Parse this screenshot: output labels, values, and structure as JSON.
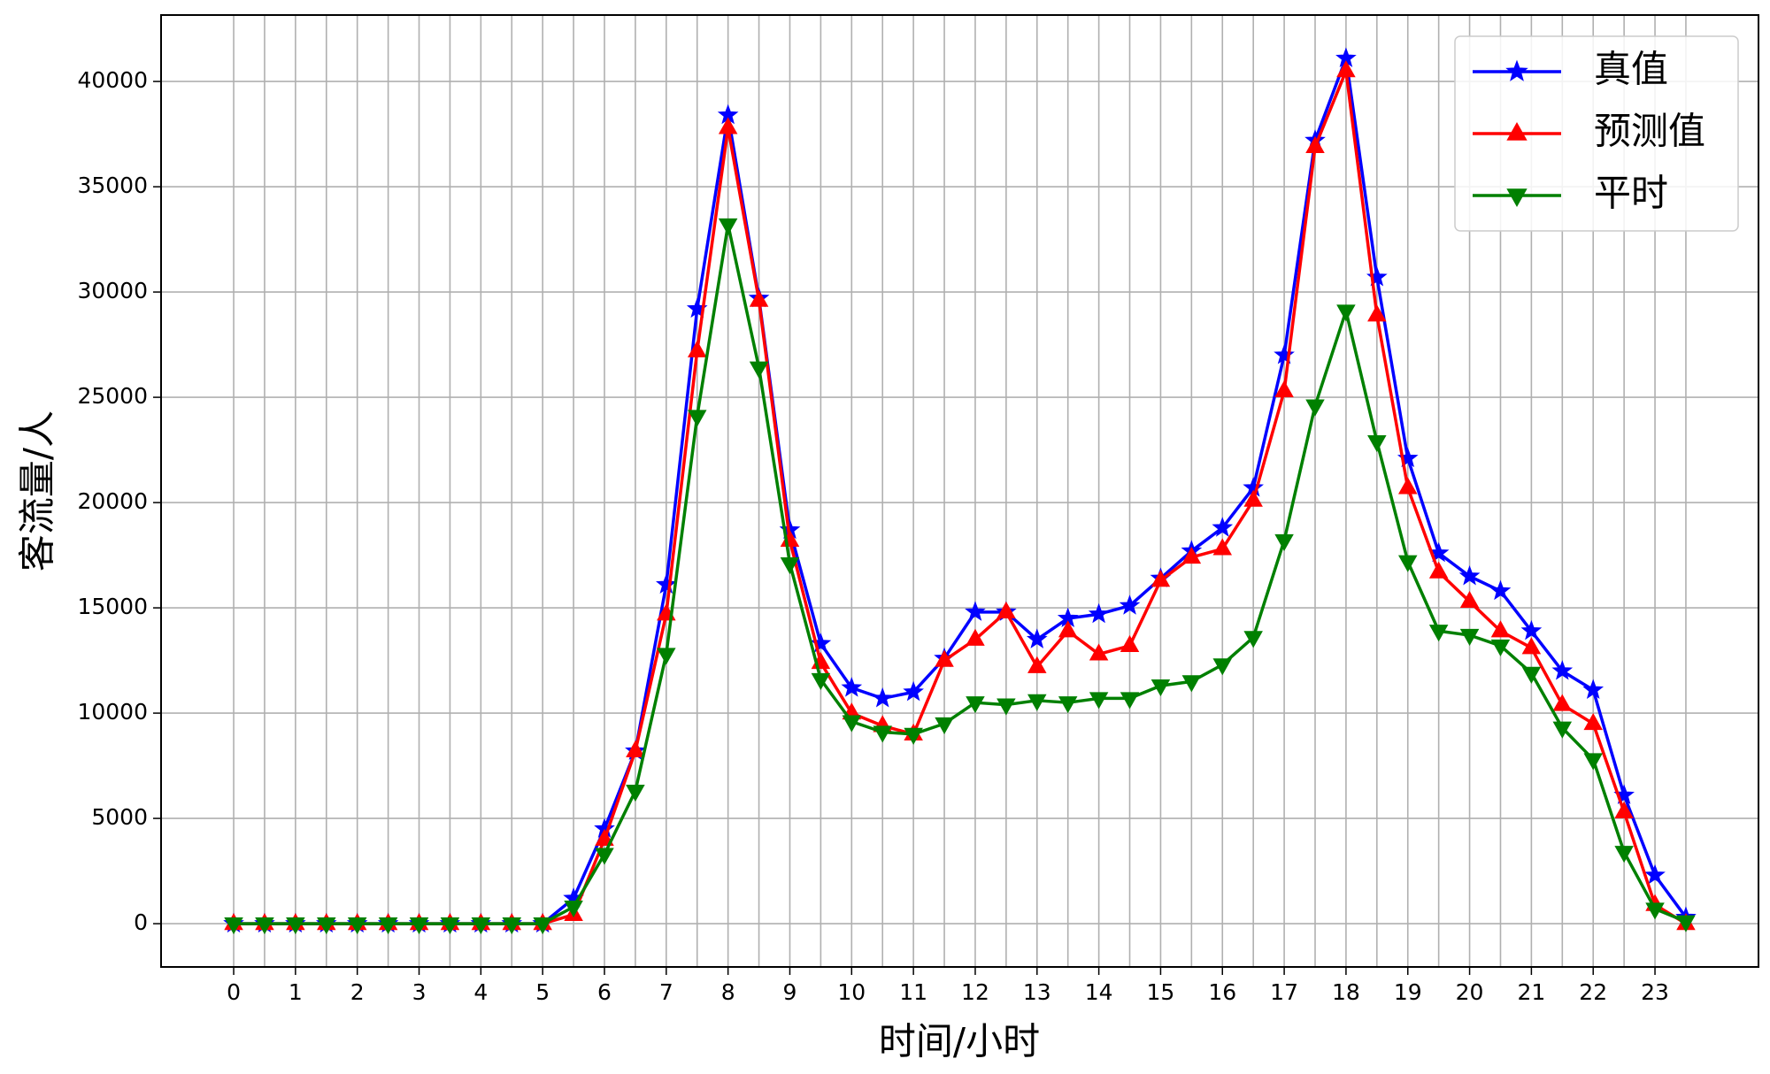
{
  "chart_data": {
    "type": "line",
    "xlabel": "时间/小时",
    "ylabel": "客流量/人",
    "x": [
      0,
      0.5,
      1,
      1.5,
      2,
      2.5,
      3,
      3.5,
      4,
      4.5,
      5,
      5.5,
      6,
      6.5,
      7,
      7.5,
      8,
      8.5,
      9,
      9.5,
      10,
      10.5,
      11,
      11.5,
      12,
      12.5,
      13,
      13.5,
      14,
      14.5,
      15,
      15.5,
      16,
      16.5,
      17,
      17.5,
      18,
      18.5,
      19,
      19.5,
      20,
      20.5,
      21,
      21.5,
      22,
      22.5,
      23,
      23.5
    ],
    "series": [
      {
        "name": "真值",
        "color": "#0000ff",
        "marker": "star",
        "values": [
          0,
          0,
          0,
          0,
          0,
          0,
          0,
          0,
          0,
          0,
          0,
          1200,
          4500,
          8200,
          16100,
          29200,
          38400,
          29700,
          18700,
          13300,
          11200,
          10700,
          11000,
          12600,
          14800,
          14800,
          13500,
          14500,
          14700,
          15100,
          16400,
          17700,
          18800,
          20700,
          27000,
          37200,
          41100,
          30700,
          22100,
          17600,
          16500,
          15800,
          13900,
          12000,
          11100,
          6100,
          2300,
          300
        ]
      },
      {
        "name": "预测值",
        "color": "#ff0000",
        "marker": "triangle-up",
        "values": [
          0,
          0,
          0,
          0,
          0,
          0,
          0,
          0,
          0,
          0,
          0,
          430,
          4000,
          8200,
          14700,
          27200,
          37800,
          29600,
          18200,
          12400,
          10000,
          9400,
          9000,
          12500,
          13500,
          14800,
          12200,
          13900,
          12800,
          13200,
          16300,
          17400,
          17800,
          20100,
          25300,
          36900,
          40500,
          28900,
          20700,
          16700,
          15300,
          13900,
          13100,
          10400,
          9500,
          5300,
          900,
          0
        ]
      },
      {
        "name": "平时",
        "color": "#008000",
        "marker": "triangle-down",
        "values": [
          0,
          0,
          0,
          0,
          0,
          0,
          0,
          0,
          0,
          0,
          0,
          800,
          3300,
          6300,
          12800,
          24100,
          33200,
          26400,
          17100,
          11600,
          9600,
          9100,
          9000,
          9500,
          10500,
          10400,
          10600,
          10500,
          10700,
          10700,
          11300,
          11500,
          12300,
          13600,
          18200,
          24600,
          29100,
          22900,
          17200,
          13900,
          13700,
          13200,
          11900,
          9300,
          7800,
          3400,
          700,
          100
        ]
      }
    ],
    "xlim": [
      -1.175,
      24.675
    ],
    "xticks": [
      0,
      1,
      2,
      3,
      4,
      5,
      6,
      7,
      8,
      9,
      10,
      11,
      12,
      13,
      14,
      15,
      16,
      17,
      18,
      19,
      20,
      21,
      22,
      23
    ],
    "ylim": [
      -2055,
      43155
    ],
    "yticks": [
      0,
      5000,
      10000,
      15000,
      20000,
      25000,
      30000,
      35000,
      40000
    ],
    "grid": true,
    "legend": "upper right"
  }
}
